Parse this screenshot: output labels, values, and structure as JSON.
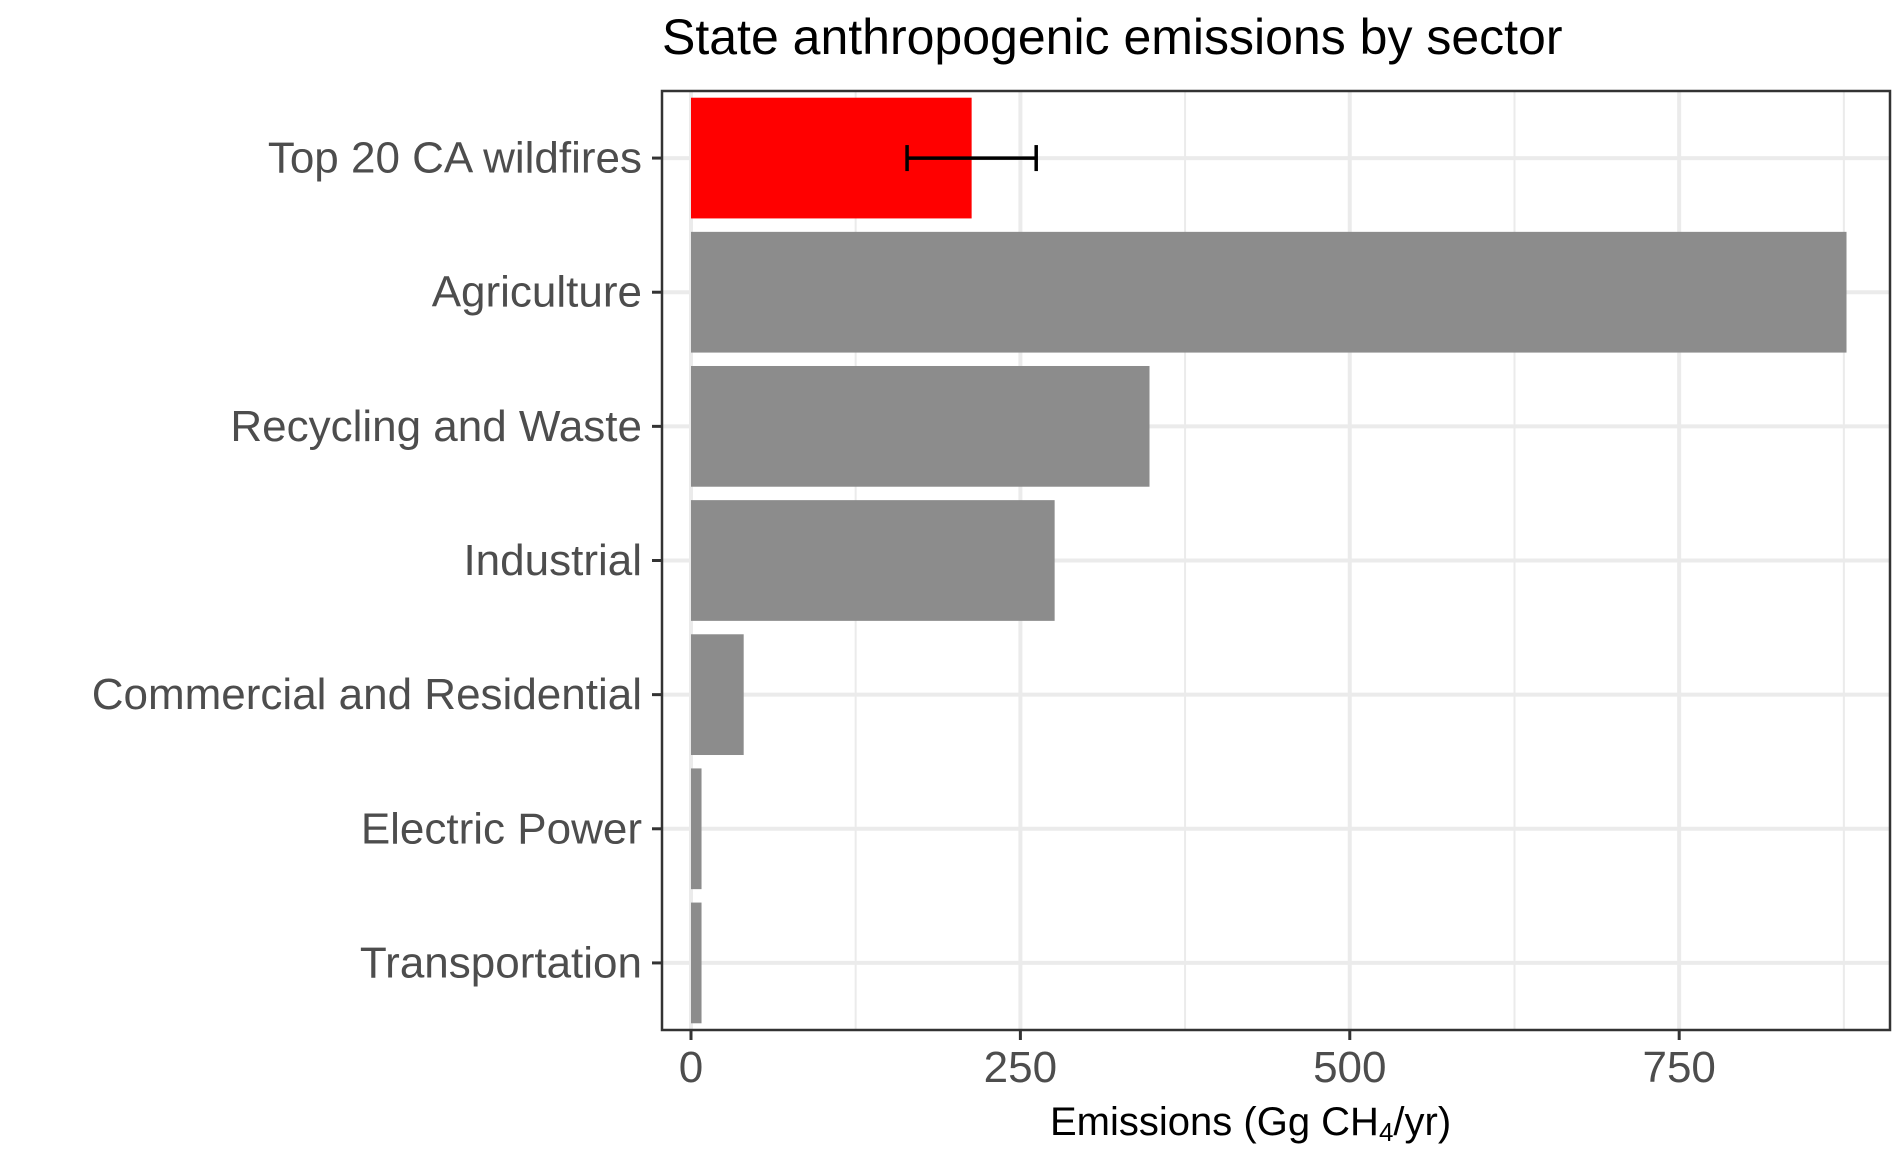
{
  "chart_data": {
    "type": "bar",
    "orientation": "horizontal",
    "title": "State anthropogenic emissions by sector",
    "xlabel": {
      "prefix": "Emissions (Gg CH",
      "subscript": "4",
      "suffix": "/yr)"
    },
    "ylabel": "",
    "xlim": [
      -22,
      910
    ],
    "x_ticks": [
      0,
      250,
      500,
      750
    ],
    "x_ticks_minor": [
      125,
      375,
      625,
      875
    ],
    "grid": true,
    "categories": [
      "Top 20 CA wildfires",
      "Agriculture",
      "Recycling and Waste",
      "Industrial",
      "Commercial and Residential",
      "Electric Power",
      "Transportation"
    ],
    "values": [
      213,
      877,
      348,
      276,
      40,
      8,
      8
    ],
    "error_bars": [
      {
        "category": "Top 20 CA wildfires",
        "low": 164,
        "high": 262
      }
    ],
    "colors": {
      "highlight": "#ff0000",
      "bars": "#8c8c8c",
      "grid": "#ebebeb",
      "panel_border": "#333333",
      "tick_text": "#4d4d4d",
      "error_bar": "#000000"
    },
    "highlight_category": "Top 20 CA wildfires"
  }
}
